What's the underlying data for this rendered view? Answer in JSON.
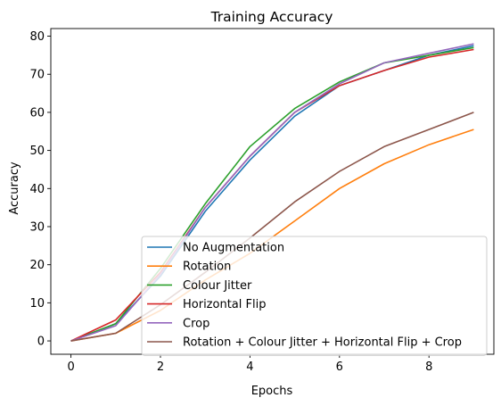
{
  "chart_data": {
    "type": "line",
    "title": "Training Accuracy",
    "xlabel": "Epochs",
    "ylabel": "Accuracy",
    "x": [
      0,
      1,
      2,
      3,
      4,
      5,
      6,
      7,
      8,
      9
    ],
    "xlim": [
      -0.45,
      9.45
    ],
    "ylim": [
      -3.5,
      82
    ],
    "xticks": [
      0,
      2,
      4,
      6,
      8
    ],
    "yticks": [
      0,
      10,
      20,
      30,
      40,
      50,
      60,
      70,
      80
    ],
    "grid": false,
    "legend_position": "lower-right",
    "series": [
      {
        "name": "No Augmentation",
        "color": "#1f77b4",
        "values": [
          0,
          4.5,
          17,
          34,
          47.5,
          59,
          67,
          71,
          75,
          77.5
        ]
      },
      {
        "name": "Rotation",
        "color": "#ff7f0e",
        "values": [
          0,
          2,
          8,
          16,
          23,
          31.5,
          40,
          46.5,
          51.5,
          55.5
        ]
      },
      {
        "name": "Colour Jitter",
        "color": "#2ca02c",
        "values": [
          0,
          4.5,
          19,
          36,
          51,
          61,
          68,
          73,
          75,
          77
        ]
      },
      {
        "name": "Horizontal Flip",
        "color": "#d62728",
        "values": [
          0,
          5.5,
          18,
          35,
          48.5,
          60,
          67,
          71,
          74.5,
          76.5
        ]
      },
      {
        "name": "Crop",
        "color": "#9467bd",
        "values": [
          0,
          4,
          17.5,
          35,
          48.5,
          60,
          67.5,
          73,
          75.5,
          78
        ]
      },
      {
        "name": "Rotation + Colour Jitter + Horizontal Flip + Crop",
        "color": "#8c564b",
        "values": [
          0,
          2,
          9.5,
          18,
          27,
          36.5,
          44.5,
          51,
          55.5,
          60
        ]
      }
    ]
  }
}
